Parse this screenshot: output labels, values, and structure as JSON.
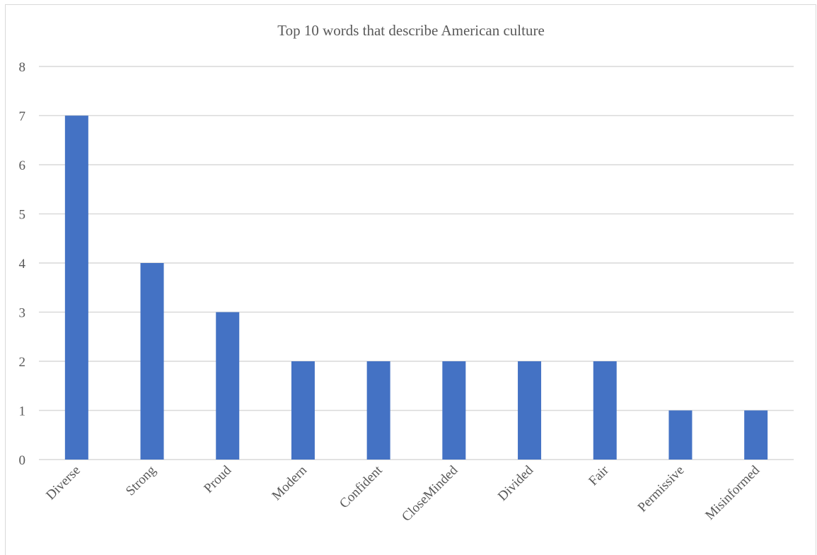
{
  "chart_data": {
    "type": "bar",
    "title": "Top 10 words that describe American culture",
    "categories": [
      "Diverse",
      "Strong",
      "Proud",
      "Modern",
      "Confident",
      "CloseMinded",
      "Divided",
      "Fair",
      "Permissive",
      "Misinformed"
    ],
    "values": [
      7,
      4,
      3,
      2,
      2,
      2,
      2,
      2,
      1,
      1
    ],
    "ylim": [
      0,
      8
    ],
    "yticks": [
      "0",
      "1",
      "2",
      "3",
      "4",
      "5",
      "6",
      "7",
      "8"
    ],
    "grid": true,
    "colors": {
      "bar": "#4472C4",
      "grid": "#d9d9d9",
      "text": "#595959"
    }
  }
}
